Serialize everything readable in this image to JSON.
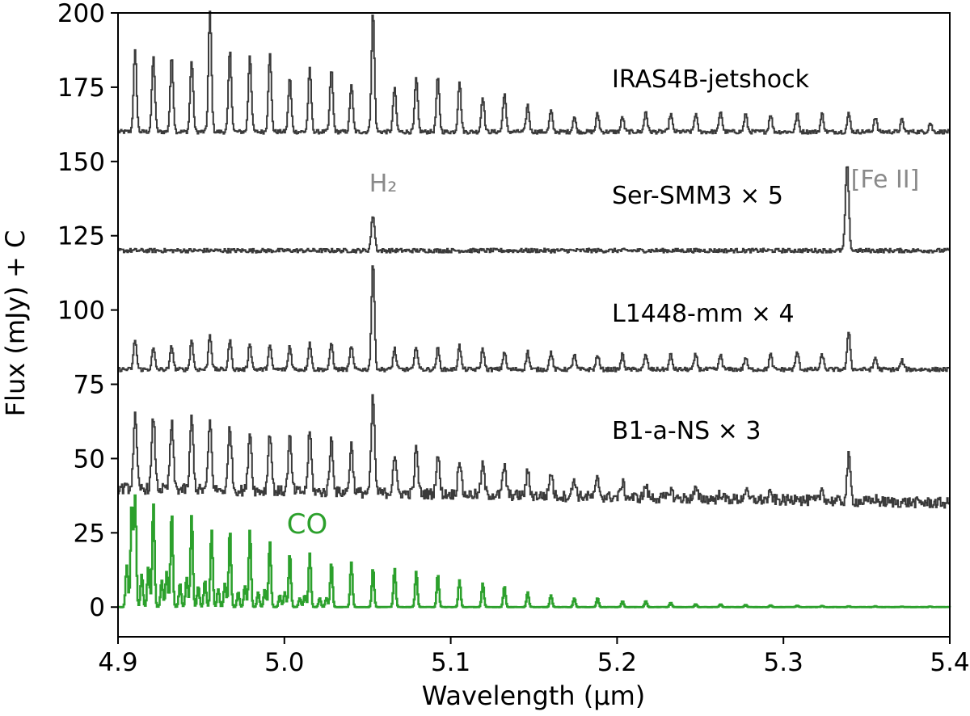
{
  "chart_data": {
    "type": "line",
    "title": "",
    "xlabel": "Wavelength (μm)",
    "ylabel": "Flux (mJy) + C",
    "xlim": [
      4.9,
      5.4
    ],
    "ylim": [
      -10,
      200
    ],
    "x_ticks": [
      "4.9",
      "5.0",
      "5.1",
      "5.2",
      "5.3",
      "5.4"
    ],
    "y_ticks": [
      "0",
      "25",
      "50",
      "75",
      "100",
      "125",
      "150",
      "175",
      "200"
    ],
    "grid": false,
    "colors": {
      "spectrum": "#3a3a3a",
      "co_model": "#2ca02c",
      "annotation": "#8a8a8a"
    },
    "series": [
      {
        "name": "IRAS4B-jetshock",
        "baseline": 160,
        "lines": [
          [
            4.91,
            187
          ],
          [
            4.921,
            185
          ],
          [
            4.932,
            185
          ],
          [
            4.944,
            184
          ],
          [
            4.955,
            200
          ],
          [
            4.967,
            187
          ],
          [
            4.979,
            186
          ],
          [
            4.991,
            186
          ],
          [
            5.003,
            178
          ],
          [
            5.015,
            181
          ],
          [
            5.028,
            181
          ],
          [
            5.04,
            176
          ],
          [
            5.053,
            200
          ],
          [
            5.066,
            175
          ],
          [
            5.079,
            178
          ],
          [
            5.092,
            178
          ],
          [
            5.105,
            177
          ],
          [
            5.119,
            172
          ],
          [
            5.132,
            173
          ],
          [
            5.146,
            169
          ],
          [
            5.16,
            167
          ],
          [
            5.174,
            165
          ],
          [
            5.188,
            166
          ],
          [
            5.203,
            165
          ],
          [
            5.217,
            167
          ],
          [
            5.232,
            166
          ],
          [
            5.247,
            166
          ],
          [
            5.262,
            167
          ],
          [
            5.277,
            166
          ],
          [
            5.292,
            166
          ],
          [
            5.308,
            166
          ],
          [
            5.323,
            166
          ],
          [
            5.339,
            166
          ],
          [
            5.355,
            165
          ],
          [
            5.371,
            164
          ],
          [
            5.388,
            163
          ]
        ]
      },
      {
        "name": "Ser-SMM3 × 5",
        "baseline": 120,
        "lines": [
          [
            5.053,
            132
          ],
          [
            5.338,
            149
          ]
        ]
      },
      {
        "name": "L1448-mm × 4",
        "baseline": 80,
        "lines": [
          [
            4.91,
            90
          ],
          [
            4.921,
            87
          ],
          [
            4.932,
            88
          ],
          [
            4.944,
            90
          ],
          [
            4.955,
            92
          ],
          [
            4.967,
            90
          ],
          [
            4.979,
            89
          ],
          [
            4.991,
            88
          ],
          [
            5.003,
            88
          ],
          [
            5.015,
            89
          ],
          [
            5.028,
            89
          ],
          [
            5.04,
            88
          ],
          [
            5.053,
            116
          ],
          [
            5.066,
            87
          ],
          [
            5.079,
            88
          ],
          [
            5.092,
            87
          ],
          [
            5.105,
            88
          ],
          [
            5.119,
            87
          ],
          [
            5.132,
            86
          ],
          [
            5.146,
            86
          ],
          [
            5.16,
            86
          ],
          [
            5.174,
            85
          ],
          [
            5.188,
            85
          ],
          [
            5.203,
            85
          ],
          [
            5.217,
            85
          ],
          [
            5.232,
            85
          ],
          [
            5.247,
            85
          ],
          [
            5.262,
            85
          ],
          [
            5.277,
            84
          ],
          [
            5.292,
            85
          ],
          [
            5.308,
            86
          ],
          [
            5.323,
            85
          ],
          [
            5.339,
            93
          ],
          [
            5.355,
            84
          ],
          [
            5.371,
            83
          ]
        ]
      },
      {
        "name": "B1-a-NS × 3",
        "baseline": 40,
        "lines": [
          [
            4.91,
            64
          ],
          [
            4.921,
            64
          ],
          [
            4.932,
            62
          ],
          [
            4.944,
            64
          ],
          [
            4.955,
            63
          ],
          [
            4.967,
            62
          ],
          [
            4.979,
            60
          ],
          [
            4.991,
            60
          ],
          [
            5.003,
            58
          ],
          [
            5.015,
            60
          ],
          [
            5.028,
            58
          ],
          [
            5.04,
            56
          ],
          [
            5.053,
            72
          ],
          [
            5.066,
            53
          ],
          [
            5.079,
            55
          ],
          [
            5.092,
            53
          ],
          [
            5.105,
            52
          ],
          [
            5.119,
            50
          ],
          [
            5.132,
            50
          ],
          [
            5.146,
            48
          ],
          [
            5.16,
            48
          ],
          [
            5.174,
            46
          ],
          [
            5.188,
            46
          ],
          [
            5.203,
            45
          ],
          [
            5.217,
            44
          ],
          [
            5.232,
            43
          ],
          [
            5.247,
            43
          ],
          [
            5.262,
            42
          ],
          [
            5.277,
            43
          ],
          [
            5.292,
            42
          ],
          [
            5.308,
            42
          ],
          [
            5.323,
            44
          ],
          [
            5.339,
            55
          ],
          [
            5.355,
            41
          ]
        ]
      },
      {
        "name": "CO",
        "baseline": 0,
        "lines": [
          [
            4.905,
            14
          ],
          [
            4.908,
            35
          ],
          [
            4.91,
            37
          ],
          [
            4.914,
            11
          ],
          [
            4.918,
            14
          ],
          [
            4.921,
            35
          ],
          [
            4.926,
            9
          ],
          [
            4.929,
            12
          ],
          [
            4.932,
            32
          ],
          [
            4.937,
            8
          ],
          [
            4.941,
            10
          ],
          [
            4.944,
            31
          ],
          [
            4.948,
            7
          ],
          [
            4.952,
            9
          ],
          [
            4.956,
            26
          ],
          [
            4.96,
            6
          ],
          [
            4.964,
            8
          ],
          [
            4.967,
            26
          ],
          [
            4.972,
            5
          ],
          [
            4.976,
            7
          ],
          [
            4.979,
            26
          ],
          [
            4.984,
            5
          ],
          [
            4.988,
            6
          ],
          [
            4.991,
            22
          ],
          [
            4.997,
            4
          ],
          [
            5.0,
            5
          ],
          [
            5.003,
            18
          ],
          [
            5.009,
            3
          ],
          [
            5.012,
            4
          ],
          [
            5.015,
            18
          ],
          [
            5.021,
            3
          ],
          [
            5.025,
            3
          ],
          [
            5.028,
            15
          ],
          [
            5.04,
            15
          ],
          [
            5.053,
            13
          ],
          [
            5.066,
            13
          ],
          [
            5.079,
            12
          ],
          [
            5.092,
            11
          ],
          [
            5.105,
            9
          ],
          [
            5.119,
            8
          ],
          [
            5.132,
            7
          ],
          [
            5.146,
            5
          ],
          [
            5.16,
            4
          ],
          [
            5.174,
            3
          ],
          [
            5.188,
            3
          ],
          [
            5.203,
            2
          ],
          [
            5.217,
            2
          ],
          [
            5.232,
            1.5
          ],
          [
            5.247,
            1
          ],
          [
            5.262,
            1
          ],
          [
            5.277,
            0.8
          ],
          [
            5.292,
            0.6
          ],
          [
            5.308,
            0.5
          ],
          [
            5.323,
            0.4
          ],
          [
            5.339,
            0.3
          ],
          [
            5.355,
            0.3
          ],
          [
            5.371,
            0.2
          ],
          [
            5.388,
            0.2
          ]
        ]
      }
    ],
    "annotations": [
      {
        "text": "H₂",
        "x": 5.053,
        "y": 140
      },
      {
        "text": "[Fe II]",
        "x": 5.347,
        "y": 140
      },
      {
        "text": "CO",
        "x": 5.007,
        "y": 25
      }
    ]
  }
}
